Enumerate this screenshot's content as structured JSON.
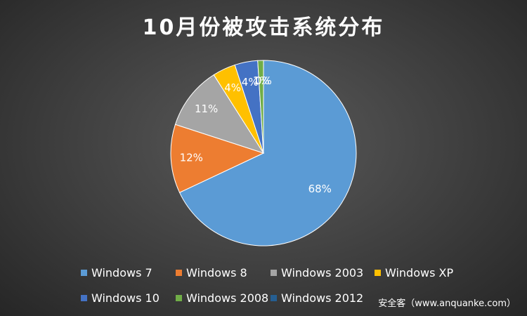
{
  "chart_data": {
    "type": "pie",
    "title": "10月份被攻击系统分布",
    "slices": [
      {
        "name": "Windows 7",
        "value": 68,
        "label": "68%",
        "color": "#5b9bd5"
      },
      {
        "name": "Windows 8",
        "value": 12,
        "label": "12%",
        "color": "#ed7d31"
      },
      {
        "name": "Windows 2003",
        "value": 11,
        "label": "11%",
        "color": "#a5a5a5"
      },
      {
        "name": "Windows XP",
        "value": 4,
        "label": "4%",
        "color": "#ffc000"
      },
      {
        "name": "Windows 10",
        "value": 4,
        "label": "4%",
        "color": "#4472c4"
      },
      {
        "name": "Windows 2008",
        "value": 1,
        "label": "1%",
        "color": "#70ad47"
      },
      {
        "name": "Windows 2012",
        "value": 0,
        "label": "0%",
        "color": "#255e91"
      }
    ],
    "legend_position": "bottom"
  },
  "watermark": "安全客（www.anquanke.com）"
}
